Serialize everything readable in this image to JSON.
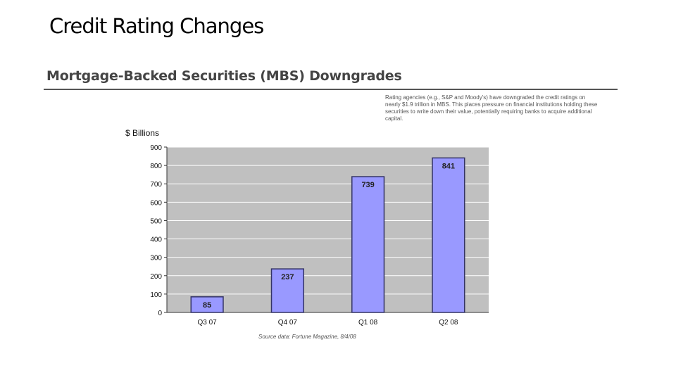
{
  "slide": {
    "title": "Credit Rating Changes"
  },
  "figure": {
    "title": "Mortgage-Backed Securities (MBS) Downgrades",
    "note": "Rating agencies (e.g., S&P and Moody's) have downgraded the credit ratings on nearly $1.9 trillion in MBS. This places pressure on financial institutions holding these securities to write down their value, potentially requiring banks to acquire additional capital.",
    "source": "Source data: Fortune Magazine, 8/4/08"
  },
  "colors": {
    "bar_fill": "#9999ff",
    "bar_stroke": "#333366",
    "plot_bg": "#c0c0c0",
    "grid": "#ffffff"
  },
  "chart_data": {
    "type": "bar",
    "categories": [
      "Q3 07",
      "Q4 07",
      "Q1 08",
      "Q2 08"
    ],
    "values": [
      85,
      237,
      739,
      841
    ],
    "data_labels": [
      "85",
      "237",
      "739",
      "841"
    ],
    "ylabel": "$ Billions",
    "xlabel": "",
    "ylim": [
      0,
      900
    ],
    "yticks": [
      0,
      100,
      200,
      300,
      400,
      500,
      600,
      700,
      800,
      900
    ],
    "grid": true,
    "legend": "none"
  }
}
